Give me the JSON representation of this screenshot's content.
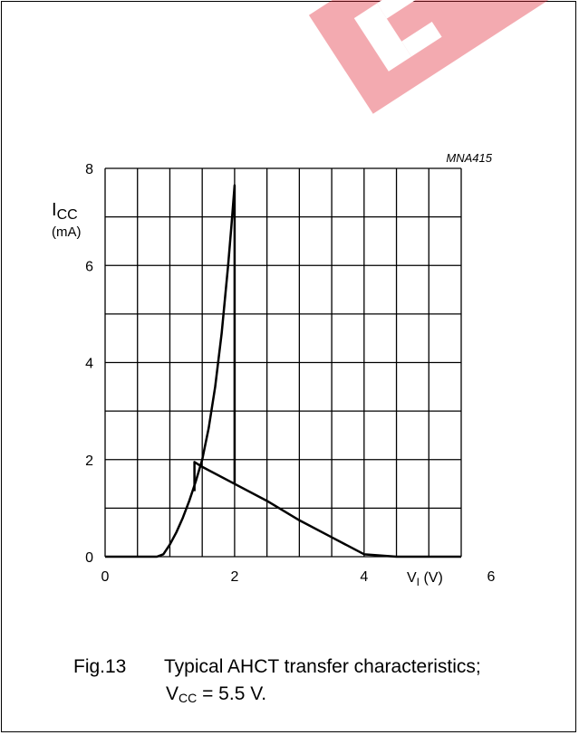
{
  "figure_code": "MNA415",
  "caption": {
    "number": "Fig.13",
    "text": "Typical AHCT transfer characteristics;",
    "condition_main": "V",
    "condition_sub": "CC",
    "condition_value": " = 5.5 V."
  },
  "colors": {
    "watermark": "#e02030",
    "grid": "#000000",
    "curve": "#000000"
  },
  "chart_data": {
    "type": "line",
    "title": "",
    "xlabel": "V",
    "xlabel_sub": "I",
    "xlabel_unit": " (V)",
    "ylabel": "I",
    "ylabel_sub": "CC",
    "ylabel_unit": "(mA)",
    "xlim": [
      0,
      5.5
    ],
    "ylim": [
      0,
      8
    ],
    "xticks": [
      0,
      2,
      4,
      6
    ],
    "yticks": [
      0,
      2,
      4,
      6,
      8
    ],
    "grid": true,
    "series": [
      {
        "x": [
          0,
          0.8,
          0.9,
          1.0,
          1.1,
          1.2,
          1.3,
          1.4,
          1.5,
          1.6,
          1.7,
          1.8,
          1.9,
          1.95,
          2.0,
          2.0
        ],
        "y": [
          0,
          0,
          0.05,
          0.25,
          0.5,
          0.8,
          1.15,
          1.55,
          2.0,
          2.65,
          3.5,
          4.6,
          6.0,
          6.8,
          7.65,
          1.5
        ]
      },
      {
        "x": [
          1.38,
          1.38,
          1.5,
          2.0,
          2.5,
          3.0,
          3.5,
          4.0,
          4.5,
          5.0,
          5.5
        ],
        "y": [
          1.35,
          1.95,
          1.85,
          1.5,
          1.15,
          0.75,
          0.4,
          0.05,
          0,
          0,
          0
        ]
      }
    ]
  }
}
